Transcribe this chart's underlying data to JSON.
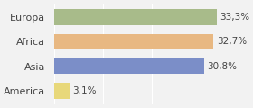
{
  "categories": [
    "America",
    "Asia",
    "Africa",
    "Europa"
  ],
  "values": [
    3.1,
    30.8,
    32.7,
    33.3
  ],
  "labels": [
    "3,1%",
    "30,8%",
    "32,7%",
    "33,3%"
  ],
  "bar_colors": [
    "#e8d87a",
    "#7b8ec8",
    "#e8b882",
    "#a8bb8a"
  ],
  "background_color": "#f2f2f2",
  "xlim": [
    0,
    40
  ],
  "bar_height": 0.65
}
